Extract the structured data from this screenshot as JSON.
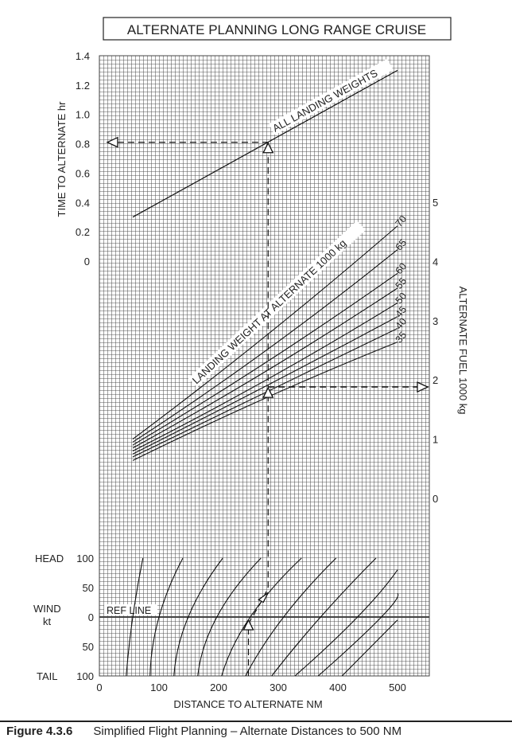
{
  "title": "ALTERNATE PLANNING  LONG RANGE CRUISE",
  "caption": {
    "figure": "Figure 4.3.6",
    "text": "Simplified Flight Planning – Alternate Distances to 500 NM"
  },
  "chart_data": {
    "type": "line",
    "xlabel": "DISTANCE TO ALTERNATE  NM",
    "xticks": [
      "0",
      "100",
      "200",
      "300",
      "400",
      "500"
    ],
    "xlim": [
      0,
      553
    ],
    "time_axis": {
      "label": "TIME TO ALTERNATE  hr",
      "ticks": [
        "0",
        "0.2",
        "0.4",
        "0.6",
        "0.8",
        "1.0",
        "1.2",
        "1.4"
      ],
      "range": [
        0,
        1.4
      ]
    },
    "fuel_axis": {
      "label": "ALTERNATE FUEL  1000 kg",
      "ticks": [
        "0",
        "1",
        "2",
        "3",
        "4",
        "5"
      ],
      "range": [
        0,
        5
      ]
    },
    "wind_axis": {
      "head_label": "HEAD",
      "mid_label": "WIND",
      "unit_label": "kt",
      "tail_label": "TAIL",
      "ticks": [
        "100",
        "50",
        "0",
        "50",
        "100"
      ],
      "ref_label": "REF LINE"
    },
    "time_line": {
      "label": "ALL LANDING WEIGHTS",
      "points": [
        [
          56,
          0.3
        ],
        [
          500,
          1.3
        ]
      ]
    },
    "fuel_label": "LANDING WEIGHT AT ALTERNATE 1000 kg",
    "fuel_series": [
      {
        "name": "70",
        "points": [
          [
            56,
            1.0
          ],
          [
            280,
            2.75
          ],
          [
            500,
            4.6
          ]
        ]
      },
      {
        "name": "65",
        "points": [
          [
            56,
            0.95
          ],
          [
            280,
            2.5
          ],
          [
            500,
            4.2
          ]
        ]
      },
      {
        "name": "60",
        "points": [
          [
            56,
            0.9
          ],
          [
            280,
            2.3
          ],
          [
            500,
            3.8
          ]
        ]
      },
      {
        "name": "55",
        "points": [
          [
            56,
            0.85
          ],
          [
            280,
            2.15
          ],
          [
            500,
            3.55
          ]
        ]
      },
      {
        "name": "50",
        "points": [
          [
            56,
            0.8
          ],
          [
            280,
            2.0
          ],
          [
            500,
            3.3
          ]
        ]
      },
      {
        "name": "45",
        "points": [
          [
            56,
            0.75
          ],
          [
            280,
            1.9
          ],
          [
            500,
            3.07
          ]
        ]
      },
      {
        "name": "40",
        "points": [
          [
            56,
            0.7
          ],
          [
            280,
            1.8
          ],
          [
            500,
            2.87
          ]
        ]
      },
      {
        "name": "35",
        "points": [
          [
            56,
            0.64
          ],
          [
            280,
            1.7
          ],
          [
            500,
            2.64
          ]
        ]
      }
    ],
    "wind_lines": [
      [
        [
          45,
          -100
        ],
        [
          56,
          0
        ],
        [
          73,
          100
        ]
      ],
      [
        [
          85,
          -100
        ],
        [
          100,
          0
        ],
        [
          140,
          100
        ]
      ],
      [
        [
          125,
          -100
        ],
        [
          149,
          0
        ],
        [
          207,
          100
        ]
      ],
      [
        [
          165,
          -100
        ],
        [
          197,
          0
        ],
        [
          271,
          100
        ]
      ],
      [
        [
          205,
          -100
        ],
        [
          253,
          0
        ],
        [
          339,
          100
        ]
      ],
      [
        [
          245,
          -100
        ],
        [
          309,
          0
        ],
        [
          397,
          100
        ]
      ],
      [
        [
          289,
          -100
        ],
        [
          371,
          0
        ],
        [
          464,
          100
        ]
      ],
      [
        [
          328,
          -100
        ],
        [
          433,
          0
        ],
        [
          500,
          80
        ]
      ],
      [
        [
          367,
          -100
        ],
        [
          473,
          0
        ],
        [
          500,
          40
        ]
      ],
      [
        [
          407,
          -100
        ],
        [
          500,
          -5
        ]
      ]
    ],
    "example": {
      "distance_at_ref": 250,
      "wind_kt": -40,
      "distance_corrected": 283,
      "time_hr": 0.81,
      "fuel_1000kg": 1.88
    },
    "grid": true
  }
}
